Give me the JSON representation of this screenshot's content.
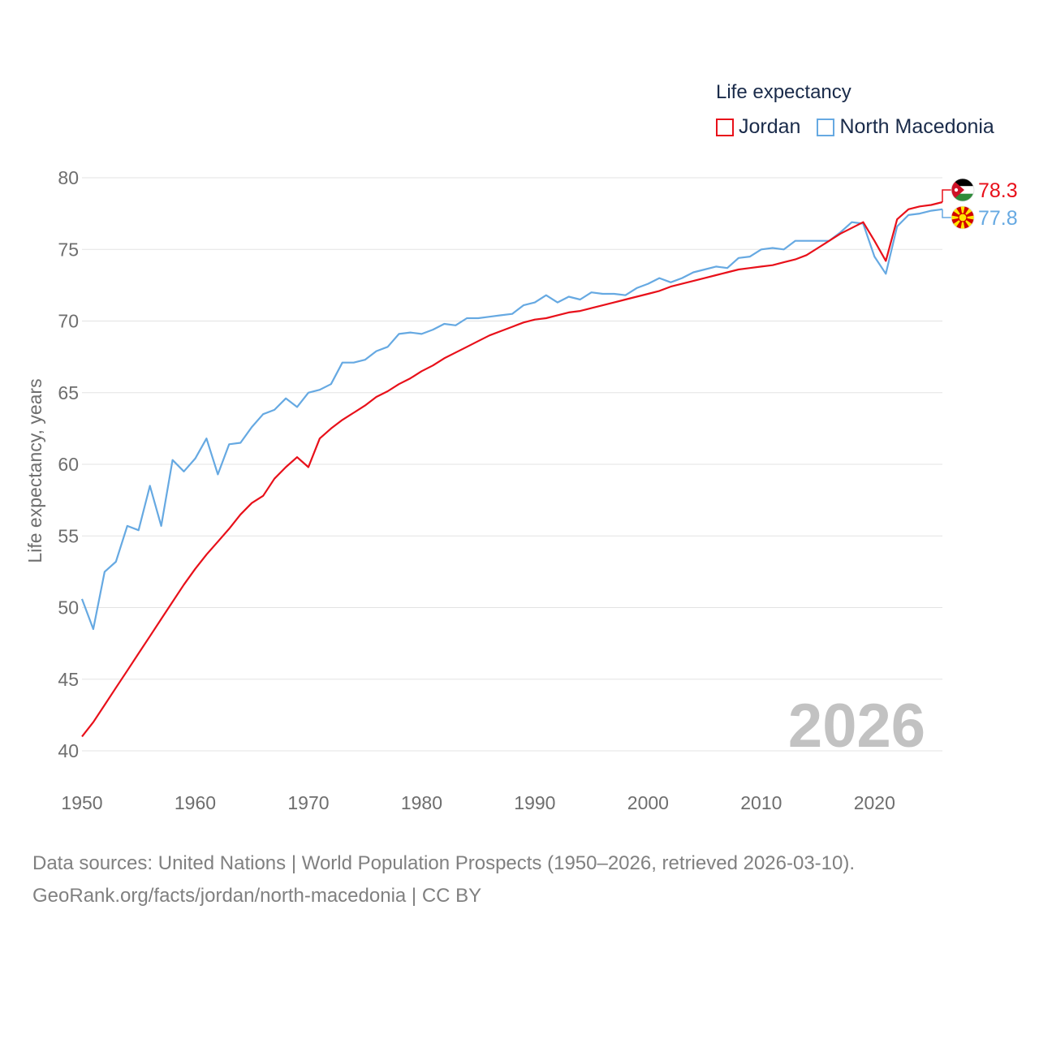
{
  "legend": {
    "title": "Life expectancy",
    "items": [
      {
        "label": "Jordan",
        "color": "#e8101a"
      },
      {
        "label": "North Macedonia",
        "color": "#66a9e2"
      }
    ]
  },
  "footer": {
    "sources": "Data sources: United Nations | World Population Prospects (1950–2026, retrieved 2026-03-10).",
    "credit": "GeoRank.org/facts/jordan/north-macedonia | CC BY"
  },
  "chart_data": {
    "type": "line",
    "title": "Life expectancy",
    "xlabel": "",
    "ylabel": "Life expectancy, years",
    "xlim": [
      1950,
      2026
    ],
    "ylim": [
      40,
      80
    ],
    "xticks": [
      1950,
      1960,
      1970,
      1980,
      1990,
      2000,
      2010,
      2020
    ],
    "yticks": [
      40,
      45,
      50,
      55,
      60,
      65,
      70,
      75,
      80
    ],
    "grid": true,
    "legend_position": "top-right",
    "year_label": "2026",
    "x": [
      1950,
      1951,
      1952,
      1953,
      1954,
      1955,
      1956,
      1957,
      1958,
      1959,
      1960,
      1961,
      1962,
      1963,
      1964,
      1965,
      1966,
      1967,
      1968,
      1969,
      1970,
      1971,
      1972,
      1973,
      1974,
      1975,
      1976,
      1977,
      1978,
      1979,
      1980,
      1981,
      1982,
      1983,
      1984,
      1985,
      1986,
      1987,
      1988,
      1989,
      1990,
      1991,
      1992,
      1993,
      1994,
      1995,
      1996,
      1997,
      1998,
      1999,
      2000,
      2001,
      2002,
      2003,
      2004,
      2005,
      2006,
      2007,
      2008,
      2009,
      2010,
      2011,
      2012,
      2013,
      2014,
      2015,
      2016,
      2017,
      2018,
      2019,
      2020,
      2021,
      2022,
      2023,
      2024,
      2025,
      2026
    ],
    "series": [
      {
        "name": "Jordan",
        "color": "#e8101a",
        "end_label": "78.3",
        "flag": "jordan-flag",
        "values": [
          41.0,
          42.0,
          43.2,
          44.4,
          45.6,
          46.8,
          48.0,
          49.2,
          50.4,
          51.6,
          52.7,
          53.7,
          54.6,
          55.5,
          56.5,
          57.3,
          57.8,
          59.0,
          59.8,
          60.5,
          59.8,
          61.8,
          62.5,
          63.1,
          63.6,
          64.1,
          64.7,
          65.1,
          65.6,
          66.0,
          66.5,
          66.9,
          67.4,
          67.8,
          68.2,
          68.6,
          69.0,
          69.3,
          69.6,
          69.9,
          70.1,
          70.2,
          70.4,
          70.6,
          70.7,
          70.9,
          71.1,
          71.3,
          71.5,
          71.7,
          71.9,
          72.1,
          72.4,
          72.6,
          72.8,
          73.0,
          73.2,
          73.4,
          73.6,
          73.7,
          73.8,
          73.9,
          74.1,
          74.3,
          74.6,
          75.1,
          75.6,
          76.1,
          76.5,
          76.9,
          75.6,
          74.2,
          77.1,
          77.8,
          78.0,
          78.1,
          78.3
        ]
      },
      {
        "name": "North Macedonia",
        "color": "#66a9e2",
        "end_label": "77.8",
        "flag": "north-macedonia-flag",
        "values": [
          50.6,
          48.5,
          52.5,
          53.2,
          55.7,
          55.4,
          58.5,
          55.7,
          60.3,
          59.5,
          60.4,
          61.8,
          59.3,
          61.4,
          61.5,
          62.6,
          63.5,
          63.8,
          64.6,
          64.0,
          65.0,
          65.2,
          65.6,
          67.1,
          67.1,
          67.3,
          67.9,
          68.2,
          69.1,
          69.2,
          69.1,
          69.4,
          69.8,
          69.7,
          70.2,
          70.2,
          70.3,
          70.4,
          70.5,
          71.1,
          71.3,
          71.8,
          71.3,
          71.7,
          71.5,
          72.0,
          71.9,
          71.9,
          71.8,
          72.3,
          72.6,
          73.0,
          72.7,
          73.0,
          73.4,
          73.6,
          73.8,
          73.7,
          74.4,
          74.5,
          75.0,
          75.1,
          75.0,
          75.6,
          75.6,
          75.6,
          75.6,
          76.2,
          76.9,
          76.8,
          74.5,
          73.3,
          76.6,
          77.4,
          77.5,
          77.7,
          77.8
        ]
      }
    ]
  }
}
